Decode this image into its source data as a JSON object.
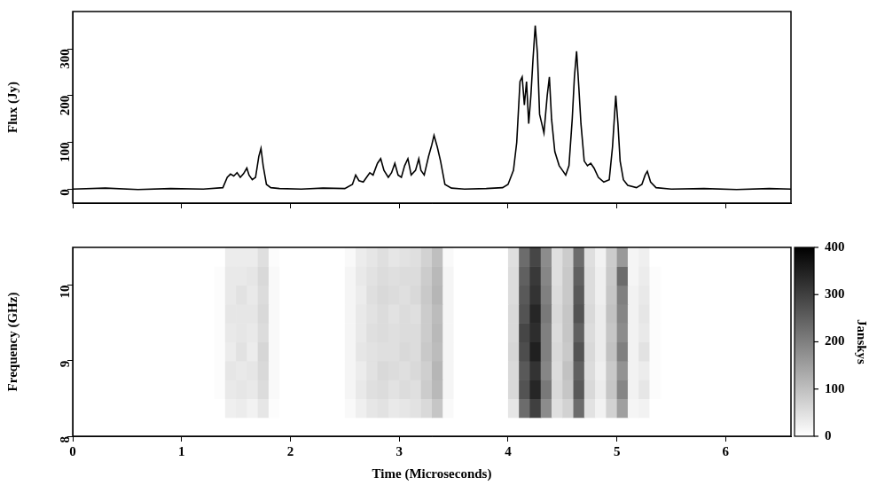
{
  "chart_data": [
    {
      "type": "line",
      "y_label": "Flux (Jy)",
      "color": "#000000",
      "grid": false,
      "tick_labels": "y",
      "xlim": [
        0,
        6.6
      ],
      "xticks": [
        0,
        1,
        2,
        3,
        4,
        5,
        6
      ],
      "ylim": [
        -30,
        380
      ],
      "yticks": [
        0,
        100,
        200,
        300
      ],
      "x": [
        0,
        0.3,
        0.6,
        0.9,
        1.2,
        1.38,
        1.42,
        1.45,
        1.48,
        1.51,
        1.54,
        1.57,
        1.6,
        1.62,
        1.65,
        1.68,
        1.71,
        1.73,
        1.75,
        1.78,
        1.82,
        1.9,
        2.1,
        2.3,
        2.5,
        2.57,
        2.6,
        2.63,
        2.67,
        2.7,
        2.73,
        2.76,
        2.8,
        2.83,
        2.86,
        2.9,
        2.93,
        2.96,
        2.99,
        3.02,
        3.05,
        3.08,
        3.11,
        3.15,
        3.18,
        3.2,
        3.23,
        3.27,
        3.3,
        3.32,
        3.35,
        3.38,
        3.42,
        3.48,
        3.6,
        3.8,
        3.95,
        4.0,
        4.05,
        4.08,
        4.11,
        4.13,
        4.15,
        4.17,
        4.19,
        4.21,
        4.23,
        4.25,
        4.27,
        4.29,
        4.31,
        4.33,
        4.36,
        4.38,
        4.4,
        4.43,
        4.47,
        4.5,
        4.53,
        4.56,
        4.59,
        4.61,
        4.63,
        4.65,
        4.67,
        4.7,
        4.73,
        4.76,
        4.79,
        4.83,
        4.88,
        4.93,
        4.96,
        4.99,
        5.01,
        5.03,
        5.06,
        5.1,
        5.18,
        5.23,
        5.26,
        5.28,
        5.31,
        5.36,
        5.5,
        5.8,
        6.1,
        6.4,
        6.6
      ],
      "values": [
        0,
        2,
        -1,
        1,
        0,
        3,
        25,
        32,
        28,
        35,
        25,
        33,
        45,
        30,
        20,
        25,
        70,
        87,
        50,
        10,
        3,
        1,
        0,
        2,
        1,
        10,
        30,
        18,
        15,
        25,
        35,
        30,
        55,
        65,
        40,
        25,
        35,
        55,
        30,
        25,
        50,
        65,
        30,
        40,
        65,
        40,
        30,
        70,
        95,
        115,
        90,
        60,
        10,
        2,
        0,
        1,
        3,
        10,
        40,
        100,
        230,
        240,
        180,
        230,
        140,
        200,
        280,
        350,
        290,
        160,
        140,
        120,
        200,
        240,
        150,
        80,
        50,
        40,
        30,
        50,
        150,
        240,
        295,
        220,
        140,
        60,
        50,
        55,
        45,
        25,
        15,
        20,
        90,
        200,
        140,
        60,
        20,
        8,
        3,
        10,
        30,
        38,
        15,
        3,
        0,
        1,
        -1,
        1,
        0
      ]
    },
    {
      "type": "heatmap",
      "x_label": "Time (Microseconds)",
      "y_label": "Frequency (GHz)",
      "grid": false,
      "xlim": [
        0,
        6.6
      ],
      "xticks": [
        0,
        1,
        2,
        3,
        4,
        5,
        6
      ],
      "ylim": [
        8,
        10.5
      ],
      "yticks": [
        8,
        9,
        10
      ],
      "cells": {
        "x": [
          1.35,
          1.45,
          1.55,
          1.65,
          1.75,
          1.85,
          1.95,
          2.05,
          2.15,
          2.25,
          2.35,
          2.45,
          2.55,
          2.65,
          2.75,
          2.85,
          2.95,
          3.05,
          3.15,
          3.25,
          3.35,
          3.45,
          3.55,
          3.65,
          3.75,
          3.85,
          3.95,
          4.05,
          4.15,
          4.25,
          4.35,
          4.45,
          4.55,
          4.65,
          4.75,
          4.85,
          4.95,
          5.05,
          5.15,
          5.25,
          5.35
        ],
        "y": [
          8.375,
          8.625,
          8.875,
          9.125,
          9.375,
          9.625,
          9.875,
          10.125,
          10.375
        ],
        "z": [
          [
            0,
            25,
            30,
            20,
            40,
            5,
            0,
            0,
            0,
            0,
            0,
            0,
            10,
            25,
            40,
            45,
            35,
            40,
            45,
            60,
            90,
            10,
            0,
            0,
            0,
            0,
            0,
            40,
            230,
            300,
            180,
            50,
            70,
            230,
            45,
            20,
            70,
            150,
            15,
            20,
            0
          ],
          [
            5,
            35,
            40,
            35,
            55,
            10,
            0,
            0,
            0,
            0,
            0,
            0,
            15,
            35,
            50,
            55,
            45,
            55,
            50,
            80,
            110,
            15,
            0,
            0,
            0,
            0,
            0,
            60,
            270,
            340,
            210,
            60,
            90,
            260,
            60,
            30,
            90,
            190,
            20,
            40,
            5
          ],
          [
            5,
            40,
            35,
            40,
            60,
            10,
            0,
            0,
            0,
            0,
            0,
            0,
            15,
            30,
            45,
            60,
            55,
            50,
            60,
            75,
            115,
            15,
            0,
            0,
            0,
            0,
            0,
            60,
            260,
            320,
            190,
            55,
            95,
            250,
            55,
            25,
            85,
            170,
            20,
            30,
            5
          ],
          [
            5,
            30,
            45,
            30,
            65,
            10,
            0,
            0,
            0,
            0,
            0,
            0,
            15,
            40,
            45,
            50,
            50,
            60,
            55,
            85,
            105,
            15,
            0,
            0,
            0,
            0,
            0,
            65,
            280,
            350,
            200,
            60,
            85,
            270,
            60,
            30,
            95,
            200,
            20,
            45,
            5
          ],
          [
            5,
            35,
            40,
            35,
            55,
            10,
            0,
            0,
            0,
            0,
            0,
            0,
            15,
            35,
            50,
            55,
            50,
            55,
            55,
            80,
            110,
            15,
            0,
            0,
            0,
            0,
            0,
            60,
            290,
            330,
            200,
            55,
            90,
            250,
            55,
            30,
            90,
            180,
            20,
            35,
            5
          ],
          [
            5,
            40,
            40,
            40,
            60,
            10,
            0,
            0,
            0,
            0,
            0,
            0,
            15,
            35,
            45,
            55,
            45,
            55,
            50,
            80,
            105,
            15,
            0,
            0,
            0,
            0,
            0,
            60,
            270,
            340,
            210,
            60,
            90,
            270,
            60,
            30,
            95,
            190,
            20,
            40,
            5
          ],
          [
            5,
            35,
            45,
            35,
            55,
            10,
            0,
            0,
            0,
            0,
            0,
            0,
            15,
            30,
            50,
            60,
            55,
            50,
            60,
            85,
            115,
            15,
            0,
            0,
            0,
            0,
            0,
            55,
            260,
            320,
            200,
            55,
            85,
            260,
            55,
            25,
            90,
            200,
            20,
            35,
            5
          ],
          [
            5,
            35,
            35,
            40,
            60,
            10,
            0,
            0,
            0,
            0,
            0,
            0,
            15,
            35,
            45,
            55,
            50,
            55,
            55,
            80,
            110,
            15,
            0,
            0,
            0,
            0,
            0,
            55,
            250,
            310,
            190,
            50,
            85,
            250,
            55,
            25,
            85,
            230,
            15,
            30,
            5
          ],
          [
            0,
            30,
            30,
            30,
            50,
            5,
            0,
            0,
            0,
            0,
            0,
            0,
            10,
            30,
            40,
            50,
            40,
            45,
            50,
            70,
            100,
            10,
            0,
            0,
            0,
            0,
            0,
            50,
            230,
            290,
            180,
            50,
            80,
            230,
            50,
            20,
            80,
            160,
            15,
            25,
            0
          ]
        ]
      },
      "colorbar": {
        "range": [
          0,
          400
        ],
        "ticks": [
          0,
          100,
          200,
          300,
          400
        ],
        "label": "Janskys"
      }
    }
  ]
}
